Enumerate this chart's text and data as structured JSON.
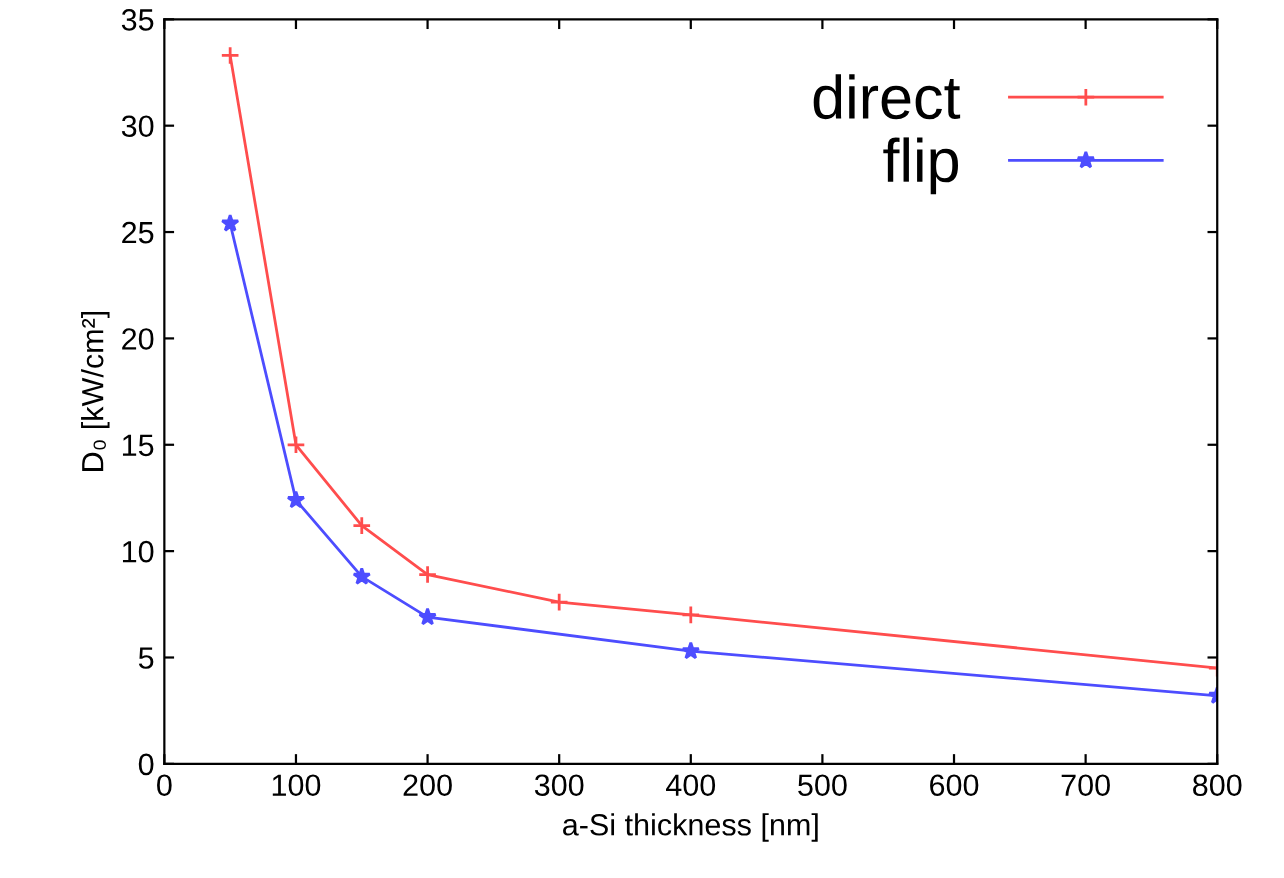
{
  "chart_data": {
    "type": "line",
    "xlabel": "a-Si thickness [nm]",
    "ylabel": "D₀ [kW/cm²]",
    "xlim": [
      0,
      800
    ],
    "xticks": [
      0,
      100,
      200,
      300,
      400,
      500,
      600,
      700,
      800
    ],
    "ylim": [
      0,
      35
    ],
    "yticks": [
      0,
      5,
      10,
      15,
      20,
      25,
      30,
      35
    ],
    "grid": false,
    "legend": "top right",
    "series": [
      {
        "name": "direct",
        "color": "#ff4d4d",
        "marker": "cross",
        "x": [
          50,
          100,
          150,
          200,
          300,
          400,
          800
        ],
        "values": [
          33.3,
          15.0,
          11.2,
          8.9,
          7.6,
          7.0,
          4.5
        ]
      },
      {
        "name": "flip",
        "color": "#4d4dff",
        "marker": "star",
        "x": [
          50,
          100,
          150,
          200,
          400,
          800
        ],
        "values": [
          25.4,
          12.4,
          8.8,
          6.9,
          5.3,
          3.2
        ]
      }
    ]
  }
}
